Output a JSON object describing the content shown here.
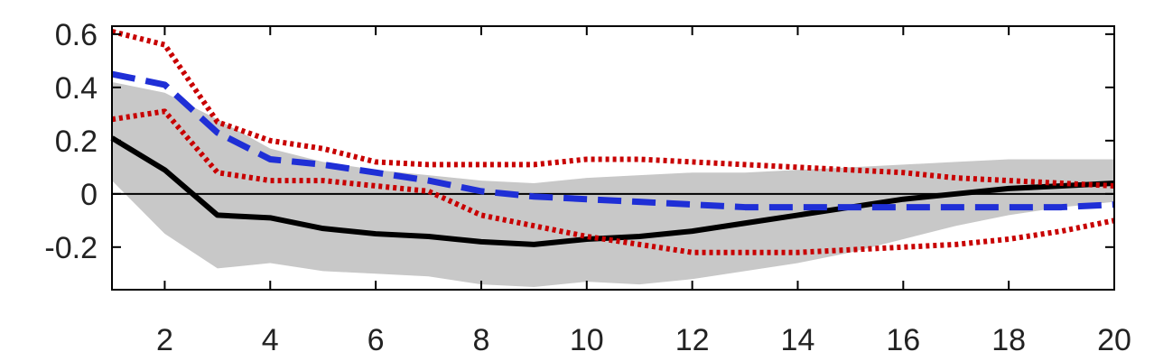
{
  "chart_data": {
    "type": "line",
    "title": "",
    "xlabel": "",
    "ylabel": "",
    "xlim": [
      1,
      20
    ],
    "ylim": [
      -0.36,
      0.63
    ],
    "xticks": [
      2,
      4,
      6,
      8,
      10,
      12,
      14,
      16,
      18,
      20
    ],
    "xtick_labels": [
      "2",
      "4",
      "6",
      "8",
      "10",
      "12",
      "14",
      "16",
      "18",
      "20"
    ],
    "yticks": [
      -0.2,
      0,
      0.2,
      0.4,
      0.6
    ],
    "ytick_labels": [
      "-0.2",
      "0",
      "0.2",
      "0.4",
      "0.6"
    ],
    "grid": false,
    "legend": "none",
    "zero_line": 0,
    "x": [
      1,
      2,
      3,
      4,
      5,
      6,
      7,
      8,
      9,
      10,
      11,
      12,
      13,
      14,
      15,
      16,
      17,
      18,
      19,
      20
    ],
    "band": {
      "color": "#c8c8c8",
      "lower": [
        0.05,
        -0.15,
        -0.28,
        -0.26,
        -0.29,
        -0.3,
        -0.31,
        -0.34,
        -0.35,
        -0.33,
        -0.34,
        -0.32,
        -0.29,
        -0.26,
        -0.22,
        -0.17,
        -0.12,
        -0.08,
        -0.05,
        -0.03
      ],
      "upper": [
        0.42,
        0.38,
        0.28,
        0.17,
        0.12,
        0.09,
        0.07,
        0.05,
        0.04,
        0.06,
        0.07,
        0.08,
        0.08,
        0.09,
        0.1,
        0.11,
        0.12,
        0.13,
        0.13,
        0.13
      ]
    },
    "series": [
      {
        "style": "solid",
        "color": "#000000",
        "values": [
          0.21,
          0.09,
          -0.08,
          -0.09,
          -0.13,
          -0.15,
          -0.16,
          -0.18,
          -0.19,
          -0.17,
          -0.16,
          -0.14,
          -0.11,
          -0.08,
          -0.05,
          -0.02,
          0.0,
          0.02,
          0.03,
          0.04
        ]
      },
      {
        "style": "dashed",
        "color": "#1f2fd6",
        "values": [
          0.45,
          0.41,
          0.23,
          0.13,
          0.11,
          0.08,
          0.05,
          0.01,
          -0.01,
          -0.02,
          -0.03,
          -0.04,
          -0.05,
          -0.05,
          -0.05,
          -0.05,
          -0.05,
          -0.05,
          -0.05,
          -0.04
        ]
      },
      {
        "style": "dotted",
        "color": "#c80000",
        "values": [
          0.61,
          0.56,
          0.27,
          0.2,
          0.17,
          0.12,
          0.11,
          0.11,
          0.11,
          0.13,
          0.13,
          0.12,
          0.11,
          0.1,
          0.09,
          0.08,
          0.06,
          0.05,
          0.04,
          0.03
        ]
      },
      {
        "style": "dotted",
        "color": "#c80000",
        "values": [
          0.28,
          0.31,
          0.08,
          0.05,
          0.05,
          0.03,
          0.01,
          -0.08,
          -0.12,
          -0.16,
          -0.19,
          -0.22,
          -0.22,
          -0.22,
          -0.21,
          -0.2,
          -0.19,
          -0.17,
          -0.14,
          -0.1
        ]
      }
    ]
  }
}
